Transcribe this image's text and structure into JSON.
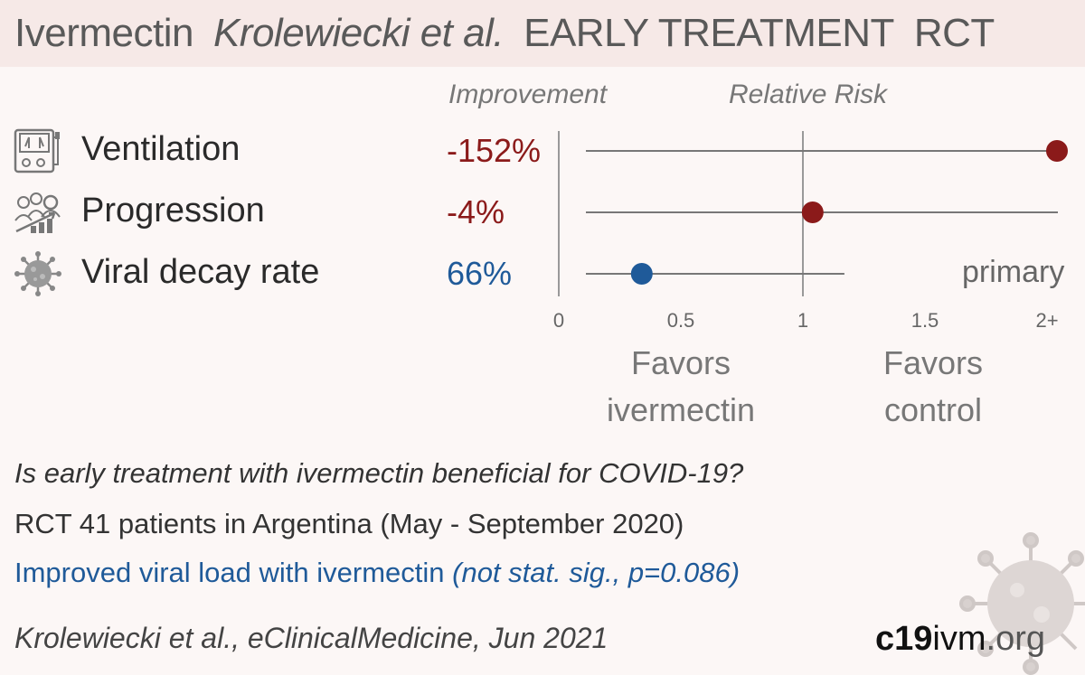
{
  "header": {
    "drug": "Ivermectin",
    "study": "Krolewiecki et al.",
    "stage": "EARLY TREATMENT",
    "design": "RCT"
  },
  "columns": {
    "improvement": "Improvement",
    "relative_risk": "Relative Risk"
  },
  "outcomes": [
    {
      "label": "Ventilation",
      "improvement": "-152%",
      "icon": "ventilator-icon"
    },
    {
      "label": "Progression",
      "improvement": "-4%",
      "icon": "progression-icon"
    },
    {
      "label": "Viral decay rate",
      "improvement": "66%",
      "icon": "virus-icon"
    }
  ],
  "primary_label": "primary",
  "favors": {
    "left": [
      "Favors",
      "ivermectin"
    ],
    "right": [
      "Favors",
      "control"
    ]
  },
  "summary": {
    "question": "Is early treatment with ivermectin beneficial for COVID-19?",
    "design_line": "RCT 41 patients in Argentina (May - September 2020)",
    "result_prefix": "Improved viral load with ivermectin ",
    "result_italic": "(not stat. sig., p=0.086)"
  },
  "citation": "Krolewiecki et al., eClinicalMedicine, Jun 2021",
  "site": {
    "bold": "c19",
    "mid": "ivm",
    "end": ".org"
  },
  "colors": {
    "harm": "#8b1a1a",
    "benefit": "#1f5a99",
    "header_bg": "#f6e9e7",
    "background": "#fcf7f6"
  },
  "chart_data": {
    "type": "scatter",
    "title": "",
    "xlabel": "Relative Risk",
    "ylabel": "",
    "xlim": [
      0,
      2
    ],
    "x_ticks": [
      "0",
      "0.5",
      "1",
      "1.5",
      "2+"
    ],
    "x_tick_values": [
      0,
      0.5,
      1,
      1.5,
      2
    ],
    "reference_line": 1,
    "points": [
      {
        "outcome": "Ventilation",
        "rr": 2.52,
        "ci_low": 0.1,
        "ci_high": 2.0,
        "color": "harm"
      },
      {
        "outcome": "Progression",
        "rr": 1.04,
        "ci_low": 0.1,
        "ci_high": 2.0,
        "color": "harm"
      },
      {
        "outcome": "Viral decay rate",
        "rr": 0.34,
        "ci_low": 0.1,
        "ci_high": 1.17,
        "color": "benefit",
        "primary": true
      }
    ]
  }
}
